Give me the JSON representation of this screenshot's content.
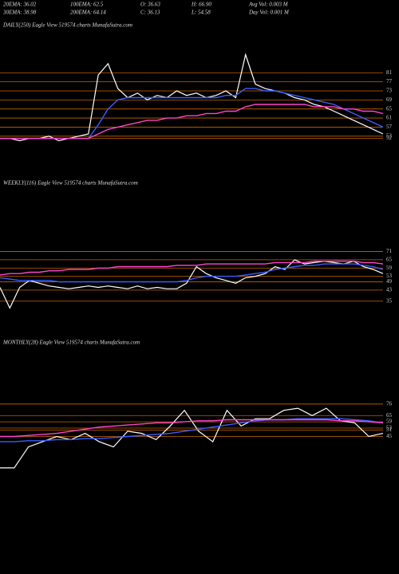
{
  "header": {
    "row1": [
      "20EMA: 36.02",
      "100EMA: 62.5",
      "O: 36.63",
      "H: 66.90",
      "Avg Vol: 0.003 M"
    ],
    "row2": [
      "30EMA: 38.98",
      "200EMA: 64.14",
      "C: 36.13",
      "L: 54.58",
      "Day Vol: 0.001 M"
    ]
  },
  "chart_data": [
    {
      "type": "line",
      "title": "DAILY(250) Eagle  View  519574  charts MunafaSutra.com",
      "ylim": [
        48,
        92
      ],
      "yticks": [
        81,
        77,
        73,
        69,
        65,
        61,
        57,
        53,
        52
      ],
      "tick_color": "#c86400",
      "series": [
        {
          "color": "#ffffff",
          "values": [
            52,
            52,
            51,
            52,
            52,
            53,
            51,
            52,
            53,
            54,
            80,
            85,
            74,
            70,
            72,
            69,
            71,
            70,
            73,
            71,
            72,
            70,
            71,
            73,
            70,
            89,
            76,
            74,
            73,
            72,
            70,
            69,
            67,
            66,
            64,
            62,
            60,
            58,
            56,
            54
          ]
        },
        {
          "color": "#3a5fff",
          "values": [
            52,
            52,
            52,
            52,
            52,
            52,
            52,
            52,
            52,
            52,
            58,
            65,
            69,
            70,
            70,
            70,
            70,
            70,
            70,
            70,
            70,
            70,
            70,
            71,
            71,
            74,
            74,
            73,
            73,
            72,
            71,
            70,
            69,
            68,
            67,
            65,
            63,
            61,
            59,
            57
          ]
        },
        {
          "color": "#ff44cc",
          "values": [
            52,
            52,
            52,
            52,
            52,
            52,
            52,
            52,
            52,
            52,
            54,
            56,
            57,
            58,
            59,
            60,
            60,
            61,
            61,
            62,
            62,
            63,
            63,
            64,
            64,
            66,
            67,
            67,
            67,
            67,
            67,
            67,
            66,
            66,
            66,
            65,
            65,
            64,
            64,
            63
          ]
        }
      ]
    },
    {
      "type": "line",
      "title": "WEEKLY(116) Eagle  View  519574  charts MunafaSutra.com",
      "ylim": [
        25,
        80
      ],
      "yticks": [
        71,
        65,
        59,
        53,
        49,
        43,
        35
      ],
      "tick_color": "#c86400",
      "series": [
        {
          "color": "#ffffff",
          "values": [
            45,
            30,
            45,
            50,
            48,
            46,
            45,
            44,
            45,
            46,
            45,
            46,
            45,
            44,
            46,
            44,
            45,
            44,
            44,
            48,
            60,
            55,
            52,
            50,
            48,
            52,
            53,
            55,
            60,
            58,
            65,
            62,
            63,
            64,
            63,
            62,
            64,
            60,
            58,
            55
          ]
        },
        {
          "color": "#3a5fff",
          "values": [
            52,
            51,
            50,
            50,
            50,
            50,
            49,
            49,
            49,
            49,
            49,
            49,
            49,
            49,
            49,
            49,
            49,
            49,
            49,
            50,
            52,
            53,
            53,
            53,
            53,
            54,
            55,
            56,
            58,
            59,
            60,
            61,
            61,
            62,
            62,
            62,
            62,
            61,
            60,
            58
          ]
        },
        {
          "color": "#ff44cc",
          "values": [
            54,
            55,
            55,
            56,
            56,
            57,
            57,
            58,
            58,
            58,
            59,
            59,
            60,
            60,
            60,
            60,
            60,
            60,
            61,
            61,
            61,
            62,
            62,
            62,
            62,
            62,
            62,
            62,
            63,
            63,
            63,
            63,
            64,
            64,
            64,
            64,
            64,
            63,
            63,
            62
          ]
        }
      ]
    },
    {
      "type": "line",
      "title": "MONTHLY(28) Eagle  View  519574  charts MunafaSutra.com",
      "ylim": [
        5,
        85
      ],
      "yticks": [
        76,
        65,
        59,
        53,
        51,
        45
      ],
      "tick_color": "#c86400",
      "series": [
        {
          "color": "#ffffff",
          "values": [
            15,
            15,
            35,
            40,
            45,
            42,
            48,
            40,
            35,
            50,
            48,
            42,
            55,
            70,
            50,
            40,
            70,
            55,
            62,
            62,
            70,
            72,
            65,
            72,
            60,
            58,
            45,
            48
          ]
        },
        {
          "color": "#3a5fff",
          "values": [
            40,
            40,
            41,
            41,
            42,
            42,
            43,
            43,
            44,
            45,
            46,
            47,
            48,
            50,
            52,
            54,
            56,
            58,
            60,
            61,
            61,
            62,
            62,
            62,
            62,
            61,
            60,
            58
          ]
        },
        {
          "color": "#ff44cc",
          "values": [
            45,
            45,
            46,
            47,
            48,
            50,
            52,
            54,
            55,
            56,
            57,
            58,
            58,
            59,
            60,
            60,
            61,
            61,
            61,
            61,
            61,
            61,
            61,
            61,
            60,
            60,
            59,
            58
          ]
        }
      ]
    }
  ]
}
